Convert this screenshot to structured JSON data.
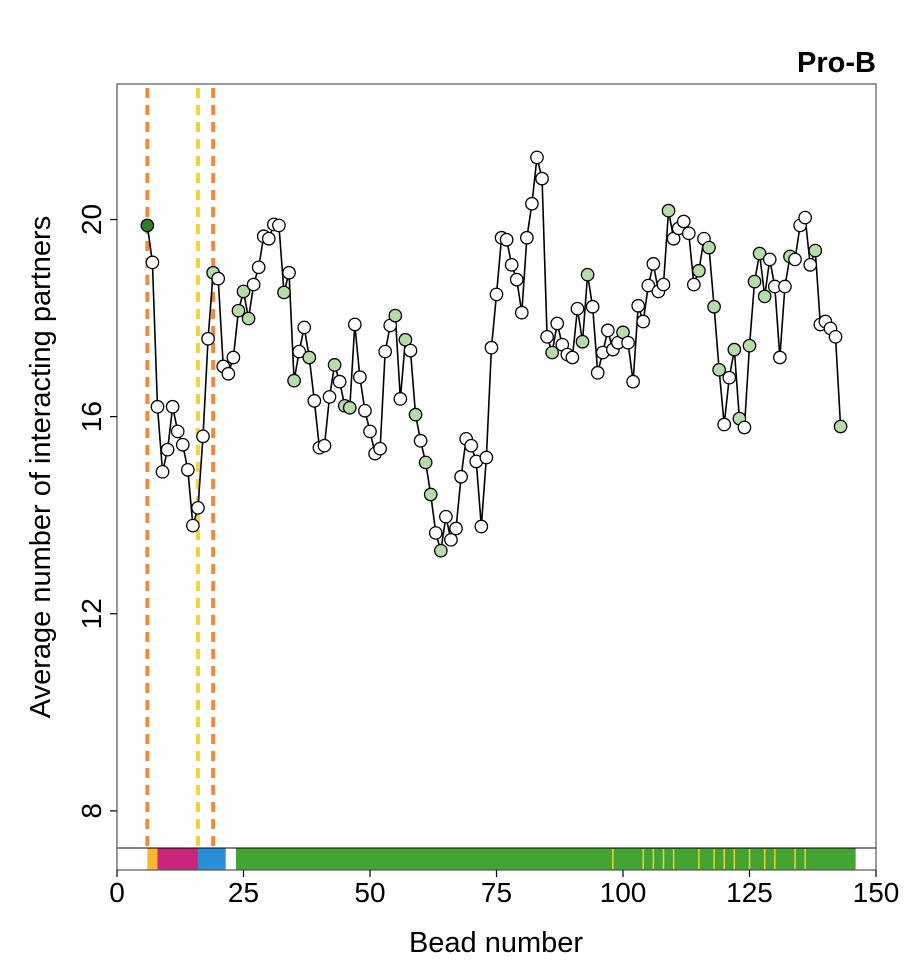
{
  "chart_data": {
    "type": "line",
    "title": "Pro-B",
    "xlabel": "Bead number",
    "ylabel": "Average number of interacting partners",
    "xlim": [
      0,
      150
    ],
    "ylim": [
      6.8,
      22.75
    ],
    "xticks": [
      0,
      25,
      50,
      75,
      100,
      125,
      150
    ],
    "yticks": [
      8,
      12,
      16,
      20
    ],
    "grid": false,
    "line_color": "#000000",
    "series": [
      {
        "name": "Pro-B",
        "x": [
          6,
          7,
          8,
          9,
          10,
          11,
          12,
          13,
          14,
          15,
          16,
          17,
          18,
          19,
          20,
          21,
          22,
          23,
          24,
          25,
          26,
          27,
          28,
          29,
          30,
          31,
          32,
          33,
          34,
          35,
          36,
          37,
          38,
          39,
          40,
          41,
          42,
          43,
          44,
          45,
          46,
          47,
          48,
          49,
          50,
          51,
          52,
          53,
          54,
          55,
          56,
          57,
          58,
          59,
          60,
          61,
          62,
          63,
          64,
          65,
          66,
          67,
          68,
          69,
          70,
          71,
          72,
          73,
          74,
          75,
          76,
          77,
          78,
          79,
          80,
          81,
          82,
          83,
          84,
          85,
          86,
          87,
          88,
          89,
          90,
          91,
          92,
          93,
          94,
          95,
          96,
          97,
          98,
          99,
          100,
          101,
          102,
          103,
          104,
          105,
          106,
          107,
          108,
          109,
          110,
          111,
          112,
          113,
          114,
          115,
          116,
          117,
          118,
          119,
          120,
          121,
          122,
          123,
          124,
          125,
          126,
          127,
          128,
          129,
          130,
          131,
          132,
          133,
          134,
          135,
          136,
          137,
          138,
          139,
          140,
          141,
          142,
          143
        ],
        "values": [
          19.88,
          19.13,
          16.2,
          14.88,
          15.33,
          16.2,
          15.7,
          15.43,
          14.92,
          13.79,
          14.15,
          15.6,
          17.58,
          18.92,
          18.8,
          17.02,
          16.87,
          17.2,
          18.15,
          18.54,
          17.99,
          18.68,
          19.03,
          19.66,
          19.61,
          19.9,
          19.88,
          18.52,
          18.92,
          16.73,
          17.32,
          17.81,
          17.2,
          16.32,
          15.37,
          15.41,
          16.4,
          17.05,
          16.71,
          16.22,
          16.18,
          17.87,
          16.8,
          16.12,
          15.7,
          15.25,
          15.35,
          17.32,
          17.85,
          18.05,
          16.36,
          17.56,
          17.34,
          16.04,
          15.51,
          15.07,
          14.42,
          13.64,
          13.28,
          13.97,
          13.5,
          13.73,
          14.78,
          15.55,
          15.41,
          15.09,
          13.77,
          15.17,
          17.4,
          18.48,
          19.63,
          19.59,
          19.08,
          18.78,
          18.11,
          19.63,
          20.32,
          21.26,
          20.83,
          17.62,
          17.3,
          17.89,
          17.46,
          17.26,
          17.2,
          18.19,
          17.52,
          18.88,
          18.23,
          16.89,
          17.3,
          17.75,
          17.36,
          17.5,
          17.71,
          17.5,
          16.71,
          18.25,
          17.93,
          18.66,
          19.1,
          18.54,
          18.68,
          20.18,
          19.61,
          19.82,
          19.96,
          19.72,
          18.68,
          18.96,
          19.61,
          19.43,
          18.23,
          16.95,
          15.84,
          16.79,
          17.36,
          15.96,
          15.78,
          17.44,
          18.74,
          19.31,
          18.44,
          19.19,
          18.64,
          17.2,
          18.64,
          19.25,
          19.19,
          19.88,
          20.04,
          19.08,
          19.37,
          17.87,
          17.93,
          17.79,
          17.62,
          15.8
        ],
        "marker_colors": [
          "#2e7d32",
          "#ffffff",
          "#ffffff",
          "#ffffff",
          "#ffffff",
          "#ffffff",
          "#ffffff",
          "#ffffff",
          "#ffffff",
          "#ffffff",
          "#ffffff",
          "#ffffff",
          "#ffffff",
          "#b8dca9",
          "#ffffff",
          "#ffffff",
          "#ffffff",
          "#ffffff",
          "#b8dca9",
          "#b8dca9",
          "#b8dca9",
          "#ffffff",
          "#ffffff",
          "#ffffff",
          "#ffffff",
          "#ffffff",
          "#ffffff",
          "#b8dca9",
          "#ffffff",
          "#b8dca9",
          "#ffffff",
          "#ffffff",
          "#b8dca9",
          "#ffffff",
          "#ffffff",
          "#ffffff",
          "#ffffff",
          "#b8dca9",
          "#ffffff",
          "#b8dca9",
          "#b8dca9",
          "#ffffff",
          "#ffffff",
          "#ffffff",
          "#ffffff",
          "#ffffff",
          "#ffffff",
          "#ffffff",
          "#ffffff",
          "#b8dca9",
          "#ffffff",
          "#b8dca9",
          "#ffffff",
          "#b8dca9",
          "#ffffff",
          "#b8dca9",
          "#b8dca9",
          "#ffffff",
          "#b8dca9",
          "#ffffff",
          "#ffffff",
          "#ffffff",
          "#ffffff",
          "#ffffff",
          "#ffffff",
          "#ffffff",
          "#ffffff",
          "#ffffff",
          "#ffffff",
          "#ffffff",
          "#ffffff",
          "#ffffff",
          "#ffffff",
          "#ffffff",
          "#ffffff",
          "#ffffff",
          "#ffffff",
          "#ffffff",
          "#ffffff",
          "#ffffff",
          "#b8dca9",
          "#ffffff",
          "#ffffff",
          "#ffffff",
          "#ffffff",
          "#ffffff",
          "#b8dca9",
          "#b8dca9",
          "#ffffff",
          "#ffffff",
          "#ffffff",
          "#ffffff",
          "#ffffff",
          "#ffffff",
          "#b8dca9",
          "#ffffff",
          "#ffffff",
          "#ffffff",
          "#ffffff",
          "#ffffff",
          "#ffffff",
          "#ffffff",
          "#ffffff",
          "#b8dca9",
          "#ffffff",
          "#ffffff",
          "#ffffff",
          "#ffffff",
          "#ffffff",
          "#b8dca9",
          "#ffffff",
          "#b8dca9",
          "#b8dca9",
          "#b8dca9",
          "#ffffff",
          "#ffffff",
          "#b8dca9",
          "#b8dca9",
          "#ffffff",
          "#b8dca9",
          "#b8dca9",
          "#b8dca9",
          "#b8dca9",
          "#ffffff",
          "#ffffff",
          "#ffffff",
          "#ffffff",
          "#b8dca9",
          "#ffffff",
          "#ffffff",
          "#ffffff",
          "#ffffff",
          "#b8dca9",
          "#ffffff",
          "#ffffff",
          "#ffffff",
          "#ffffff",
          "#b8dca9"
        ]
      }
    ],
    "vlines": [
      {
        "x": 6,
        "color": "#f08a3c"
      },
      {
        "x": 16,
        "color": "#f5d33a"
      },
      {
        "x": 19,
        "color": "#f08a3c"
      }
    ],
    "track": {
      "segments": [
        {
          "start": 0,
          "end": 6,
          "color": "#ffffff"
        },
        {
          "start": 6,
          "end": 8,
          "color": "#f5b82e"
        },
        {
          "start": 8,
          "end": 16,
          "color": "#c8267a"
        },
        {
          "start": 16,
          "end": 21.5,
          "color": "#2a8fd6"
        },
        {
          "start": 21.5,
          "end": 23.5,
          "color": "#ffffff"
        },
        {
          "start": 23.5,
          "end": 146,
          "color": "#45a332"
        },
        {
          "start": 146,
          "end": 150,
          "color": "#ffffff"
        }
      ],
      "marks": [
        98,
        104,
        106,
        108,
        110,
        115,
        118,
        120,
        122,
        125,
        128,
        130,
        134,
        136
      ],
      "mark_color": "#e8d23a"
    }
  }
}
